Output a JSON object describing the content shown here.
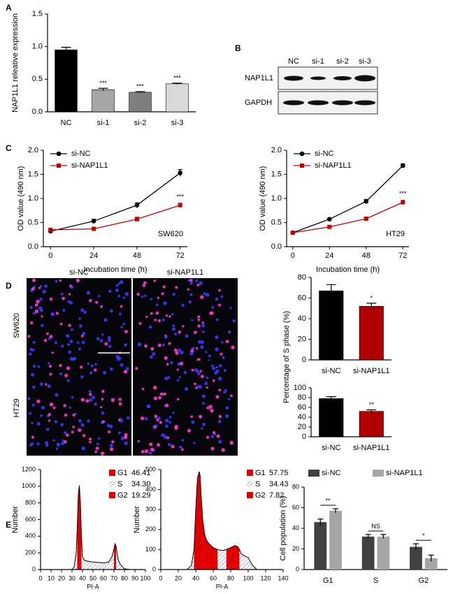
{
  "panel_labels": [
    "A",
    "B",
    "C",
    "D",
    "E"
  ],
  "blot": {
    "lanes": [
      "NC",
      "si-1",
      "si-2",
      "si-3"
    ],
    "rows": [
      "NAP1L1",
      "GAPDH"
    ]
  },
  "images": {
    "columns": [
      "si-NC",
      "si-NAP1L1"
    ],
    "rows": [
      "SW620",
      "HT29"
    ]
  },
  "chart_data": [
    {
      "type": "bar",
      "y_label": "NAP1L1 releative expression",
      "categories": [
        "NC",
        "si-1",
        "si-2",
        "si-3"
      ],
      "values": [
        0.95,
        0.34,
        0.3,
        0.43
      ],
      "errors": [
        0.04,
        0.02,
        0.01,
        0.01
      ],
      "colors": [
        "#000000",
        "#a6a6a6",
        "#7f7f7f",
        "#d9d9d9"
      ],
      "annotations": [
        null,
        "***",
        "***",
        "***"
      ],
      "ylim": [
        0,
        1.5
      ],
      "yticks": [
        {
          "value": 0,
          "label": "0.0"
        },
        0.5,
        {
          "value": 1,
          "label": "1.0"
        },
        1.5
      ]
    },
    {
      "type": "line",
      "x_label": "Incubation time (h)",
      "y_label": "OD value (490 nm)",
      "x": [
        0,
        24,
        48,
        72
      ],
      "series": [
        {
          "name": "si-NC",
          "color": "#000000",
          "marker": "circle",
          "values": [
            0.32,
            0.53,
            0.86,
            1.53
          ],
          "errors": [
            0.03,
            0.04,
            0.05,
            0.07
          ]
        },
        {
          "name": "si-NAP1L1",
          "color": "#c00000",
          "marker": "square",
          "values": [
            0.35,
            0.37,
            0.57,
            0.86
          ],
          "errors": [
            0.03,
            0.02,
            0.04,
            0.04
          ]
        }
      ],
      "annotation": "***",
      "cell_line": "SW620",
      "xlim": [
        -4,
        76
      ],
      "xticks": [
        0,
        24,
        48,
        72
      ],
      "ylim": [
        0,
        2
      ],
      "yticks": [
        {
          "value": 0,
          "label": "0.0"
        },
        0.5,
        {
          "value": 1,
          "label": "1.0"
        },
        1.5,
        {
          "value": 2,
          "label": "2.0"
        }
      ]
    },
    {
      "type": "line",
      "x_label": "Incubation time (h)",
      "y_label": "OD value (490 nm)",
      "x": [
        0,
        24,
        48,
        72
      ],
      "series": [
        {
          "name": "si-NC",
          "color": "#000000",
          "marker": "circle",
          "values": [
            0.29,
            0.57,
            0.94,
            1.68
          ],
          "errors": [
            0.02,
            0.02,
            0.04,
            0.04
          ]
        },
        {
          "name": "si-NAP1L1",
          "color": "#c00000",
          "marker": "square",
          "values": [
            0.29,
            0.41,
            0.58,
            0.92
          ],
          "errors": [
            0.02,
            0.02,
            0.03,
            0.04
          ]
        }
      ],
      "annotation": "***",
      "cell_line": "HT29",
      "xlim": [
        -4,
        76
      ],
      "xticks": [
        0,
        24,
        48,
        72
      ],
      "ylim": [
        0,
        2
      ],
      "yticks": [
        {
          "value": 0,
          "label": "0.0"
        },
        0.5,
        {
          "value": 1,
          "label": "1.0"
        },
        1.5,
        {
          "value": 2,
          "label": "2.0"
        }
      ]
    },
    {
      "type": "bar",
      "y_label": "Percentage of S phase (%)",
      "categories": [
        "si-NC",
        "si-NAP1L1"
      ],
      "values": [
        67,
        52
      ],
      "errors": [
        6,
        3
      ],
      "colors": [
        "#000000",
        "#b00000"
      ],
      "annotations": [
        null,
        "*"
      ],
      "ylim": [
        0,
        80
      ],
      "yticks": [
        0,
        20,
        40,
        60,
        80
      ]
    },
    {
      "type": "bar",
      "categories": [
        "si-NC",
        "si-NAP1L1"
      ],
      "values": [
        78,
        52
      ],
      "errors": [
        4,
        3
      ],
      "colors": [
        "#000000",
        "#b00000"
      ],
      "annotations": [
        null,
        "**"
      ],
      "ylim": [
        0,
        100
      ],
      "yticks": [
        0,
        20,
        40,
        60,
        80,
        100
      ]
    },
    {
      "type": "area",
      "x_label": "PI-A",
      "y_label": "Number",
      "color": "#000000",
      "x": [
        30,
        32,
        34,
        35,
        36,
        37,
        38,
        39,
        40,
        42,
        45,
        50,
        55,
        60,
        65,
        68,
        70,
        71,
        72,
        73,
        74,
        76,
        80,
        85
      ],
      "values": [
        0,
        30,
        200,
        500,
        900,
        1010,
        800,
        400,
        150,
        110,
        100,
        90,
        85,
        80,
        90,
        150,
        250,
        310,
        280,
        200,
        120,
        60,
        10,
        0
      ],
      "phases": {
        "names": [
          "G1",
          "S",
          "G2"
        ],
        "values": [
          46.41,
          34.3,
          19.29
        ],
        "value_labels": [
          "46.41",
          "34.30",
          "19.29"
        ],
        "colors": [
          "#e00000",
          "#6a6ad0",
          "#e00000"
        ]
      },
      "xlim": [
        0,
        100
      ],
      "xticks": [
        0,
        10,
        20,
        30,
        40,
        50,
        60,
        70,
        80,
        90,
        100
      ],
      "ylim": [
        0,
        1200
      ],
      "yticks": [
        0,
        200,
        400,
        600,
        800,
        1000,
        1200
      ]
    },
    {
      "type": "area",
      "x_label": "PI-A",
      "y_label": "Number",
      "color": "#000000",
      "x": [
        30,
        35,
        38,
        40,
        42,
        44,
        45,
        46,
        48,
        50,
        52,
        55,
        60,
        65,
        70,
        75,
        80,
        85,
        88,
        90,
        92,
        95,
        100,
        105,
        110
      ],
      "values": [
        0,
        20,
        100,
        300,
        460,
        490,
        470,
        380,
        250,
        180,
        150,
        130,
        110,
        100,
        95,
        100,
        110,
        120,
        115,
        100,
        80,
        70,
        60,
        20,
        0
      ],
      "phases": {
        "names": [
          "G1",
          "S",
          "G2"
        ],
        "values": [
          57.75,
          34.43,
          7.82
        ],
        "value_labels": [
          "57.75",
          "34.43",
          "7.82"
        ],
        "colors": [
          "#e00000",
          "#6a6ad0",
          "#e00000"
        ]
      },
      "xlim": [
        0,
        140
      ],
      "xticks": [
        0,
        20,
        40,
        60,
        80,
        100,
        120,
        140
      ],
      "ylim": [
        0,
        500
      ],
      "yticks": [
        0,
        100,
        200,
        300,
        400,
        500
      ]
    },
    {
      "type": "grouped_bar",
      "y_label": "Cell population (%)",
      "categories": [
        "G1",
        "S",
        "G2"
      ],
      "series": [
        {
          "name": "si-NC",
          "color": "#404040",
          "values": [
            46,
            32,
            22
          ],
          "errors": [
            3,
            2,
            3
          ]
        },
        {
          "name": "si-NAP1L1",
          "color": "#a6a6a6",
          "values": [
            57,
            32,
            11
          ],
          "errors": [
            2,
            2,
            3
          ]
        }
      ],
      "comparisons": [
        "**",
        "NS",
        "*"
      ],
      "ylim": [
        0,
        80
      ],
      "yticks": [
        0,
        20,
        40,
        60,
        80
      ]
    }
  ]
}
